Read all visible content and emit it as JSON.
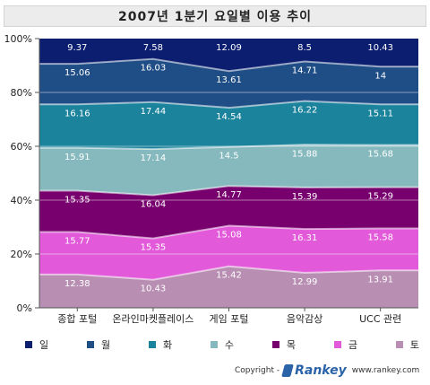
{
  "chart_data": {
    "type": "area",
    "stacked": true,
    "title": "2007년 1분기 요일별 이용 추이",
    "categories": [
      "종합 포털",
      "온라인마켓플레이스",
      "게임 포털",
      "음악감상",
      "UCC 관련"
    ],
    "yticks": [
      "0%",
      "20%",
      "40%",
      "60%",
      "80%",
      "100%"
    ],
    "ylim": [
      0,
      100
    ],
    "grid": true,
    "legend_position": "bottom",
    "series": [
      {
        "name": "토",
        "color": "#b88fb2",
        "label_color": "#ffffff",
        "values": [
          12.38,
          10.43,
          15.42,
          12.99,
          13.91
        ]
      },
      {
        "name": "금",
        "color": "#e25ad9",
        "label_color": "#ffffff",
        "values": [
          15.77,
          15.35,
          15.08,
          16.31,
          15.58
        ]
      },
      {
        "name": "목",
        "color": "#78006e",
        "label_color": "#ffffff",
        "values": [
          15.35,
          16.04,
          14.77,
          15.39,
          15.29
        ]
      },
      {
        "name": "수",
        "color": "#86b9bd",
        "label_color": "#ffffff",
        "values": [
          15.91,
          17.14,
          14.5,
          15.88,
          15.68
        ]
      },
      {
        "name": "화",
        "color": "#1c839d",
        "label_color": "#ffffff",
        "values": [
          16.16,
          17.44,
          14.54,
          16.22,
          15.11
        ]
      },
      {
        "name": "월",
        "color": "#1f4d86",
        "label_color": "#ffffff",
        "values": [
          15.06,
          16.03,
          13.61,
          14.71,
          14
        ]
      },
      {
        "name": "일",
        "color": "#0c1e70",
        "label_color": "#ffffff",
        "values": [
          9.37,
          7.58,
          12.09,
          8.5,
          10.43
        ]
      }
    ]
  },
  "legend_order": [
    "일",
    "월",
    "화",
    "수",
    "목",
    "금",
    "토"
  ],
  "footer": {
    "copyright": "Copyright -",
    "brand": "Rankey",
    "url": "www.rankey.com"
  }
}
